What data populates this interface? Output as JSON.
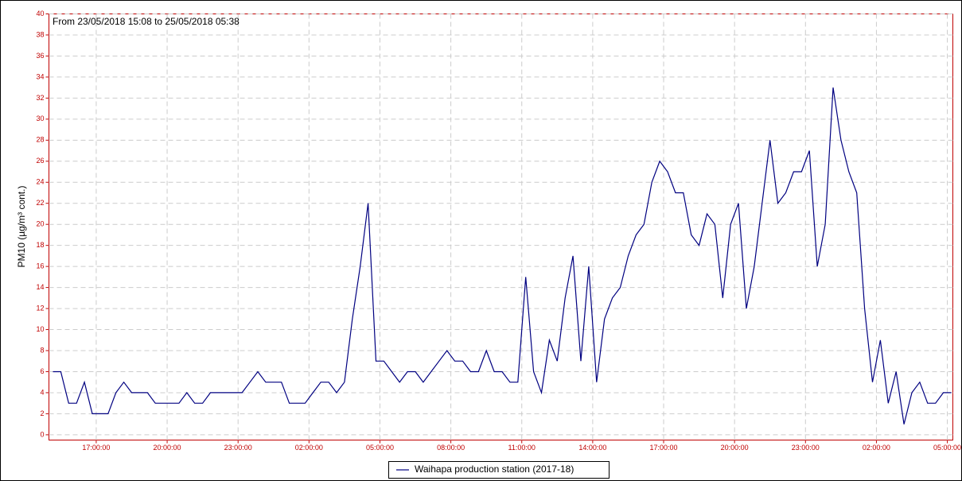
{
  "chart_data": {
    "type": "line",
    "title": "From 23/05/2018 15:08  to 25/05/2018 05:38",
    "y_label": "PM10 (µg/m³ cont.)",
    "x": [
      "2018-05-23T15:10",
      "2018-05-23T15:30",
      "2018-05-23T15:50",
      "2018-05-23T16:10",
      "2018-05-23T16:30",
      "2018-05-23T16:50",
      "2018-05-23T17:10",
      "2018-05-23T17:30",
      "2018-05-23T17:50",
      "2018-05-23T18:10",
      "2018-05-23T18:30",
      "2018-05-23T18:50",
      "2018-05-23T19:10",
      "2018-05-23T19:30",
      "2018-05-23T19:50",
      "2018-05-23T20:10",
      "2018-05-23T20:30",
      "2018-05-23T20:50",
      "2018-05-23T21:10",
      "2018-05-23T21:30",
      "2018-05-23T21:50",
      "2018-05-23T22:10",
      "2018-05-23T22:30",
      "2018-05-23T22:50",
      "2018-05-23T23:10",
      "2018-05-23T23:30",
      "2018-05-23T23:50",
      "2018-05-24T00:10",
      "2018-05-24T00:30",
      "2018-05-24T00:50",
      "2018-05-24T01:10",
      "2018-05-24T01:30",
      "2018-05-24T01:50",
      "2018-05-24T02:10",
      "2018-05-24T02:30",
      "2018-05-24T02:50",
      "2018-05-24T03:10",
      "2018-05-24T03:30",
      "2018-05-24T03:50",
      "2018-05-24T04:10",
      "2018-05-24T04:30",
      "2018-05-24T04:50",
      "2018-05-24T05:10",
      "2018-05-24T05:30",
      "2018-05-24T05:50",
      "2018-05-24T06:10",
      "2018-05-24T06:30",
      "2018-05-24T06:50",
      "2018-05-24T07:10",
      "2018-05-24T07:30",
      "2018-05-24T07:50",
      "2018-05-24T08:10",
      "2018-05-24T08:30",
      "2018-05-24T08:50",
      "2018-05-24T09:10",
      "2018-05-24T09:30",
      "2018-05-24T09:50",
      "2018-05-24T10:10",
      "2018-05-24T10:30",
      "2018-05-24T10:50",
      "2018-05-24T11:10",
      "2018-05-24T11:30",
      "2018-05-24T11:50",
      "2018-05-24T12:10",
      "2018-05-24T12:30",
      "2018-05-24T12:50",
      "2018-05-24T13:10",
      "2018-05-24T13:30",
      "2018-05-24T13:50",
      "2018-05-24T14:10",
      "2018-05-24T14:30",
      "2018-05-24T14:50",
      "2018-05-24T15:10",
      "2018-05-24T15:30",
      "2018-05-24T15:50",
      "2018-05-24T16:10",
      "2018-05-24T16:30",
      "2018-05-24T16:50",
      "2018-05-24T17:10",
      "2018-05-24T17:30",
      "2018-05-24T17:50",
      "2018-05-24T18:10",
      "2018-05-24T18:30",
      "2018-05-24T18:50",
      "2018-05-24T19:10",
      "2018-05-24T19:30",
      "2018-05-24T19:50",
      "2018-05-24T20:10",
      "2018-05-24T20:30",
      "2018-05-24T20:50",
      "2018-05-24T21:10",
      "2018-05-24T21:30",
      "2018-05-24T21:50",
      "2018-05-24T22:10",
      "2018-05-24T22:30",
      "2018-05-24T22:50",
      "2018-05-24T23:10",
      "2018-05-24T23:30",
      "2018-05-24T23:50",
      "2018-05-25T00:10",
      "2018-05-25T00:30",
      "2018-05-25T00:50",
      "2018-05-25T01:10",
      "2018-05-25T01:30",
      "2018-05-25T01:50",
      "2018-05-25T02:10",
      "2018-05-25T02:30",
      "2018-05-25T02:50",
      "2018-05-25T03:10",
      "2018-05-25T03:30",
      "2018-05-25T03:50",
      "2018-05-25T04:10",
      "2018-05-25T04:30",
      "2018-05-25T04:50",
      "2018-05-25T05:10"
    ],
    "series": [
      {
        "name": "Waihapa production station (2017-18)",
        "color": "#000080",
        "values": [
          6,
          6,
          3,
          3,
          5,
          2,
          2,
          2,
          4,
          5,
          4,
          4,
          4,
          3,
          3,
          3,
          3,
          4,
          3,
          3,
          4,
          4,
          4,
          4,
          4,
          5,
          6,
          5,
          5,
          5,
          3,
          3,
          3,
          4,
          5,
          5,
          4,
          5,
          11,
          16,
          22,
          7,
          7,
          6,
          5,
          6,
          6,
          5,
          6,
          7,
          8,
          7,
          7,
          6,
          6,
          8,
          6,
          6,
          5,
          5,
          15,
          6,
          4,
          9,
          7,
          13,
          17,
          7,
          16,
          5,
          11,
          13,
          14,
          17,
          19,
          20,
          24,
          26,
          25,
          23,
          23,
          19,
          18,
          21,
          20,
          13,
          20,
          22,
          12,
          16,
          22,
          28,
          22,
          23,
          25,
          25,
          27,
          16,
          20,
          33,
          28,
          25,
          23,
          12,
          5,
          9,
          3,
          6,
          1,
          4,
          5,
          3,
          3,
          4,
          4
        ]
      }
    ],
    "xlim": [
      "2018-05-23T15:00",
      "2018-05-25T05:14"
    ],
    "xticks": [
      {
        "value": "2018-05-23T17:00",
        "label": "17:00:00"
      },
      {
        "value": "2018-05-23T20:00",
        "label": "20:00:00"
      },
      {
        "value": "2018-05-23T23:00",
        "label": "23:00:00"
      },
      {
        "value": "2018-05-24T02:00",
        "label": "02:00:00"
      },
      {
        "value": "2018-05-24T05:00",
        "label": "05:00:00"
      },
      {
        "value": "2018-05-24T08:00",
        "label": "08:00:00"
      },
      {
        "value": "2018-05-24T11:00",
        "label": "11:00:00"
      },
      {
        "value": "2018-05-24T14:00",
        "label": "14:00:00"
      },
      {
        "value": "2018-05-24T17:00",
        "label": "17:00:00"
      },
      {
        "value": "2018-05-24T20:00",
        "label": "20:00:00"
      },
      {
        "value": "2018-05-24T23:00",
        "label": "23:00:00"
      },
      {
        "value": "2018-05-25T02:00",
        "label": "02:00:00"
      },
      {
        "value": "2018-05-25T05:00",
        "label": "05:00:00"
      }
    ],
    "ylim": [
      -0.5,
      40
    ],
    "yticks": [
      0,
      2,
      4,
      6,
      8,
      10,
      12,
      14,
      16,
      18,
      20,
      22,
      24,
      26,
      28,
      30,
      32,
      34,
      36,
      38,
      40
    ],
    "grid": true,
    "legend": "bottom"
  }
}
